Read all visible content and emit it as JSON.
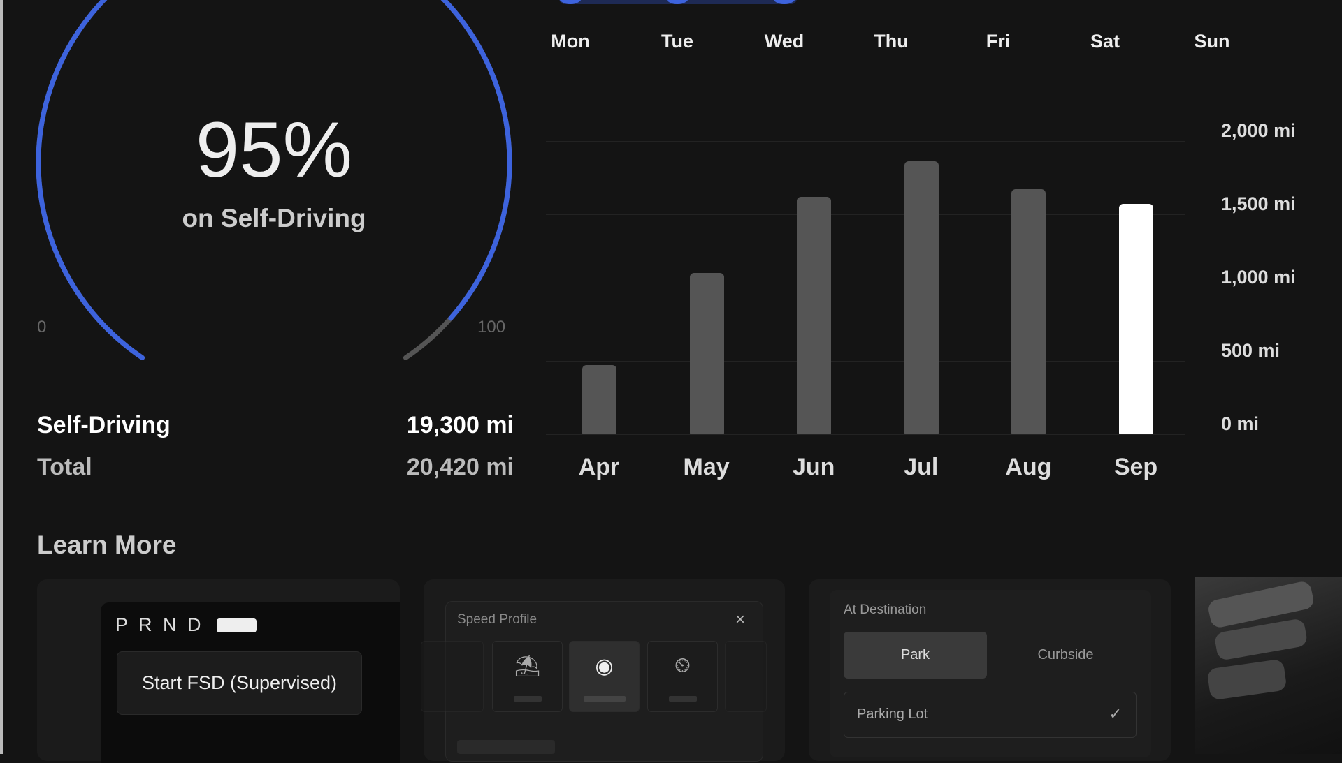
{
  "gauge": {
    "percent_label": "95%",
    "caption": "on Self-Driving",
    "min_label": "0",
    "max_label": "100",
    "value": 95,
    "accent": "#3d63dd"
  },
  "stats": [
    {
      "label": "Self-Driving",
      "value": "19,300 mi"
    },
    {
      "label": "Total",
      "value": "20,420 mi"
    }
  ],
  "days": [
    "Mon",
    "Tue",
    "Wed",
    "Thu",
    "Fri",
    "Sat",
    "Sun"
  ],
  "chart_data": {
    "type": "bar",
    "categories": [
      "Apr",
      "May",
      "Jun",
      "Jul",
      "Aug",
      "Sep"
    ],
    "values": [
      470,
      1100,
      1620,
      1860,
      1670,
      1570
    ],
    "highlight": "Sep",
    "yticks": [
      "2,000 mi",
      "1,500 mi",
      "1,000 mi",
      "500 mi",
      "0 mi"
    ],
    "ylim": [
      0,
      2000
    ],
    "ylabel": "",
    "xlabel": "",
    "title": ""
  },
  "learn_more": {
    "title": "Learn More",
    "card1": {
      "gear": "P R N D",
      "button": "Start FSD (Supervised)"
    },
    "card2": {
      "title": "Speed Profile",
      "close": "×"
    },
    "card3": {
      "title": "At Destination",
      "options": [
        "Park",
        "Curbside"
      ],
      "selected": "Park",
      "dropdown": "Parking Lot",
      "check": "✓"
    }
  }
}
